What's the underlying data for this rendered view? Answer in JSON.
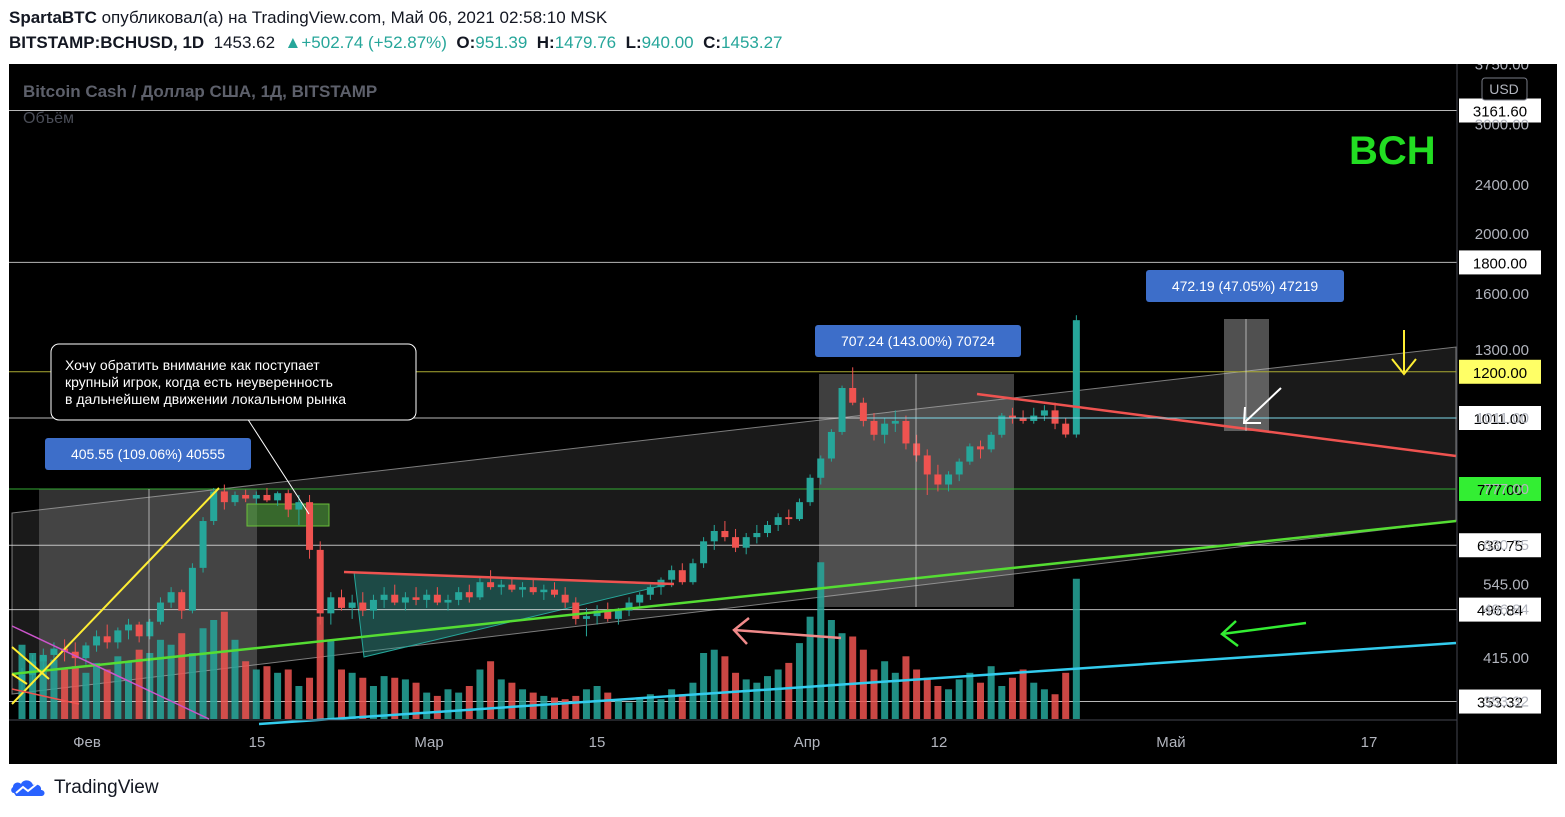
{
  "header": {
    "author": "SpartaBTC",
    "published_text": "опубликовал(а) на TradingView.com, Май 06, 2021 02:58:10 MSK",
    "symbol": "BITSTAMP:BCHUSD, 1D",
    "last": "1453.62",
    "change": "▲+502.74 (+52.87%)",
    "o_label": "O:",
    "o": "951.39",
    "h_label": "H:",
    "h": "1479.76",
    "l_label": "L:",
    "l": "940.00",
    "c_label": "C:",
    "c": "1453.27"
  },
  "chart": {
    "title": "Bitcoin Cash / Доллар США, 1Д, BITSTAMP",
    "volume_label": "Объём",
    "watermark": "BCH",
    "currency": "USD",
    "note": [
      "Хочу обратить внимание как поступает",
      "крупный игрок, когда есть неуверенность",
      "в дальнейшем движении локальном рынка"
    ],
    "measure_labels": [
      "405.55 (109.06%) 40555",
      "707.24 (143.00%) 70724",
      "472.19 (47.05%) 47219"
    ],
    "colors": {
      "up": "#26a69a",
      "down": "#ef5350",
      "bg": "#000000",
      "watermark": "#22dd22"
    }
  },
  "chart_data": {
    "type": "candlestick",
    "price_scale": "log",
    "price_ticks": [
      "3750.00",
      "3000.00",
      "2400.00",
      "2000.00",
      "1600.00",
      "1300.00",
      "1011.00",
      "777.00",
      "630.75",
      "545.00",
      "496.84",
      "415.00",
      "353.32"
    ],
    "level_labels": [
      {
        "value": "3161.60",
        "color": "#ffffff"
      },
      {
        "value": "1800.00",
        "color": "#ffffff"
      },
      {
        "value": "1200.00",
        "color": "#ffff66"
      },
      {
        "value": "1011.00",
        "color": "#ffffff"
      },
      {
        "value": "777.00",
        "color": "#33ee33"
      },
      {
        "value": "630.75",
        "color": "#ffffff"
      },
      {
        "value": "496.84",
        "color": "#ffffff"
      },
      {
        "value": "353.32",
        "color": "#ffffff"
      }
    ],
    "time_ticks": [
      "Фев",
      "15",
      "Мар",
      "15",
      "Апр",
      "12",
      "Май",
      "17"
    ],
    "candles": [
      [
        380,
        400,
        360,
        390
      ],
      [
        390,
        420,
        375,
        410
      ],
      [
        410,
        430,
        395,
        420
      ],
      [
        420,
        440,
        405,
        430
      ],
      [
        430,
        445,
        410,
        425
      ],
      [
        425,
        440,
        400,
        415
      ],
      [
        415,
        440,
        405,
        435
      ],
      [
        435,
        460,
        425,
        450
      ],
      [
        450,
        470,
        430,
        440
      ],
      [
        440,
        465,
        430,
        460
      ],
      [
        460,
        480,
        445,
        470
      ],
      [
        470,
        475,
        440,
        450
      ],
      [
        450,
        480,
        445,
        475
      ],
      [
        475,
        520,
        470,
        510
      ],
      [
        510,
        540,
        500,
        530
      ],
      [
        530,
        535,
        480,
        495
      ],
      [
        495,
        590,
        490,
        580
      ],
      [
        580,
        700,
        570,
        690
      ],
      [
        690,
        780,
        680,
        770
      ],
      [
        770,
        790,
        720,
        740
      ],
      [
        740,
        770,
        730,
        760
      ],
      [
        760,
        775,
        740,
        750
      ],
      [
        750,
        770,
        735,
        760
      ],
      [
        760,
        780,
        740,
        745
      ],
      [
        745,
        770,
        730,
        765
      ],
      [
        765,
        775,
        700,
        720
      ],
      [
        720,
        760,
        680,
        740
      ],
      [
        740,
        760,
        600,
        620
      ],
      [
        620,
        640,
        470,
        490
      ],
      [
        490,
        530,
        470,
        520
      ],
      [
        520,
        535,
        495,
        500
      ],
      [
        500,
        525,
        480,
        510
      ],
      [
        510,
        530,
        485,
        495
      ],
      [
        495,
        525,
        480,
        515
      ],
      [
        515,
        540,
        500,
        525
      ],
      [
        525,
        545,
        505,
        510
      ],
      [
        510,
        530,
        495,
        520
      ],
      [
        520,
        540,
        505,
        515
      ],
      [
        515,
        535,
        500,
        525
      ],
      [
        525,
        540,
        505,
        510
      ],
      [
        510,
        525,
        495,
        515
      ],
      [
        515,
        540,
        505,
        530
      ],
      [
        530,
        545,
        510,
        520
      ],
      [
        520,
        560,
        515,
        550
      ],
      [
        550,
        575,
        535,
        540
      ],
      [
        540,
        555,
        525,
        545
      ],
      [
        545,
        560,
        530,
        535
      ],
      [
        535,
        550,
        520,
        540
      ],
      [
        540,
        555,
        525,
        530
      ],
      [
        530,
        545,
        515,
        535
      ],
      [
        535,
        550,
        520,
        525
      ],
      [
        525,
        540,
        500,
        510
      ],
      [
        510,
        520,
        470,
        480
      ],
      [
        480,
        500,
        450,
        485
      ],
      [
        485,
        505,
        470,
        495
      ],
      [
        495,
        510,
        475,
        480
      ],
      [
        480,
        500,
        470,
        495
      ],
      [
        495,
        520,
        485,
        510
      ],
      [
        510,
        530,
        500,
        525
      ],
      [
        525,
        545,
        515,
        540
      ],
      [
        540,
        560,
        525,
        555
      ],
      [
        555,
        585,
        540,
        575
      ],
      [
        575,
        590,
        545,
        550
      ],
      [
        550,
        600,
        545,
        590
      ],
      [
        590,
        650,
        580,
        640
      ],
      [
        640,
        680,
        620,
        665
      ],
      [
        665,
        690,
        640,
        650
      ],
      [
        650,
        670,
        615,
        625
      ],
      [
        625,
        660,
        610,
        650
      ],
      [
        650,
        680,
        635,
        660
      ],
      [
        660,
        690,
        650,
        680
      ],
      [
        680,
        710,
        665,
        700
      ],
      [
        700,
        720,
        680,
        695
      ],
      [
        695,
        750,
        690,
        740
      ],
      [
        740,
        820,
        730,
        810
      ],
      [
        810,
        880,
        790,
        870
      ],
      [
        870,
        970,
        860,
        960
      ],
      [
        960,
        1140,
        950,
        1130
      ],
      [
        1130,
        1220,
        1060,
        1070
      ],
      [
        1070,
        1090,
        980,
        1000
      ],
      [
        1000,
        1030,
        930,
        950
      ],
      [
        950,
        1010,
        920,
        990
      ],
      [
        990,
        1040,
        960,
        1000
      ],
      [
        1000,
        1020,
        900,
        920
      ],
      [
        920,
        950,
        860,
        880
      ],
      [
        880,
        900,
        760,
        820
      ],
      [
        820,
        850,
        770,
        790
      ],
      [
        790,
        830,
        770,
        820
      ],
      [
        820,
        870,
        800,
        860
      ],
      [
        860,
        920,
        850,
        910
      ],
      [
        910,
        930,
        870,
        900
      ],
      [
        900,
        960,
        890,
        950
      ],
      [
        950,
        1030,
        940,
        1020
      ],
      [
        1020,
        1050,
        990,
        1010
      ],
      [
        1010,
        1040,
        990,
        1000
      ],
      [
        1000,
        1050,
        990,
        1020
      ],
      [
        1020,
        1060,
        1000,
        1040
      ],
      [
        1040,
        1070,
        970,
        990
      ],
      [
        990,
        1010,
        940,
        951
      ],
      [
        951,
        1480,
        940,
        1453
      ]
    ],
    "volumes": [
      0.45,
      0.4,
      0.38,
      0.36,
      0.3,
      0.32,
      0.28,
      0.34,
      0.3,
      0.38,
      0.35,
      0.42,
      0.4,
      0.48,
      0.45,
      0.52,
      0.4,
      0.55,
      0.6,
      0.65,
      0.48,
      0.35,
      0.3,
      0.32,
      0.28,
      0.3,
      0.2,
      0.25,
      0.62,
      0.48,
      0.3,
      0.28,
      0.25,
      0.2,
      0.26,
      0.25,
      0.24,
      0.22,
      0.16,
      0.14,
      0.18,
      0.16,
      0.2,
      0.3,
      0.35,
      0.24,
      0.22,
      0.18,
      0.16,
      0.14,
      0.13,
      0.12,
      0.14,
      0.18,
      0.2,
      0.16,
      0.12,
      0.1,
      0.13,
      0.15,
      0.12,
      0.18,
      0.15,
      0.22,
      0.4,
      0.42,
      0.38,
      0.28,
      0.24,
      0.22,
      0.26,
      0.3,
      0.34,
      0.46,
      0.62,
      0.95,
      0.6,
      0.52,
      0.5,
      0.42,
      0.3,
      0.35,
      0.28,
      0.38,
      0.3,
      0.25,
      0.2,
      0.18,
      0.24,
      0.28,
      0.22,
      0.32,
      0.2,
      0.25,
      0.3,
      0.22,
      0.18,
      0.15,
      0.28,
      0.85
    ]
  }
}
